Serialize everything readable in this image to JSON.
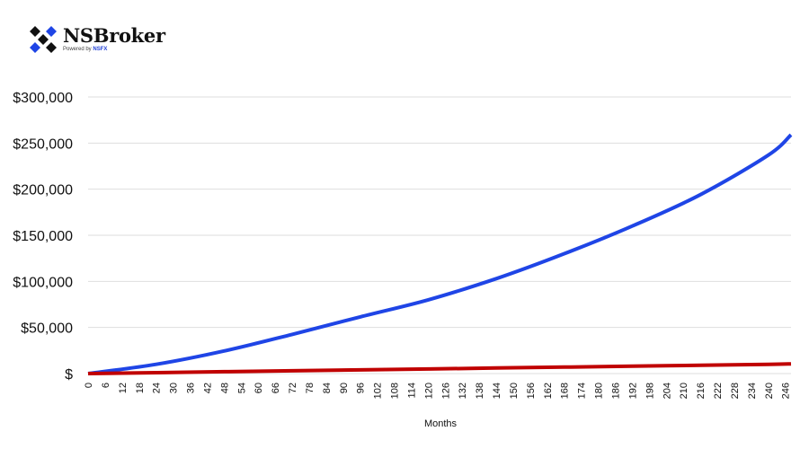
{
  "logo": {
    "brand": "NSBroker",
    "powered_prefix": "Powered by ",
    "powered_name": "NSFX"
  },
  "chart_data": {
    "type": "line",
    "title": "",
    "xlabel": "Months",
    "ylabel": "",
    "xlim": [
      0,
      248
    ],
    "ylim": [
      0,
      300000
    ],
    "grid": true,
    "legend": "none",
    "x_tick_step": 6,
    "y_ticks": [
      0,
      50000,
      100000,
      150000,
      200000,
      250000,
      300000
    ],
    "y_tick_labels": [
      "$",
      "$50,000",
      "$100,000",
      "$150,000",
      "$200,000",
      "$250,000",
      "$300,000"
    ],
    "x": [
      0,
      24,
      48,
      72,
      96,
      120,
      144,
      168,
      192,
      216,
      240,
      248
    ],
    "series": [
      {
        "color": "#1f45e6",
        "values": [
          0,
          10000,
          24500,
          42500,
          61500,
          80000,
          103000,
          130000,
          160000,
          194000,
          237000,
          259000
        ]
      },
      {
        "color": "#c00000",
        "values": [
          0,
          1000,
          2000,
          3000,
          4000,
          5000,
          6000,
          7000,
          8000,
          9000,
          10000,
          10500
        ]
      }
    ]
  }
}
